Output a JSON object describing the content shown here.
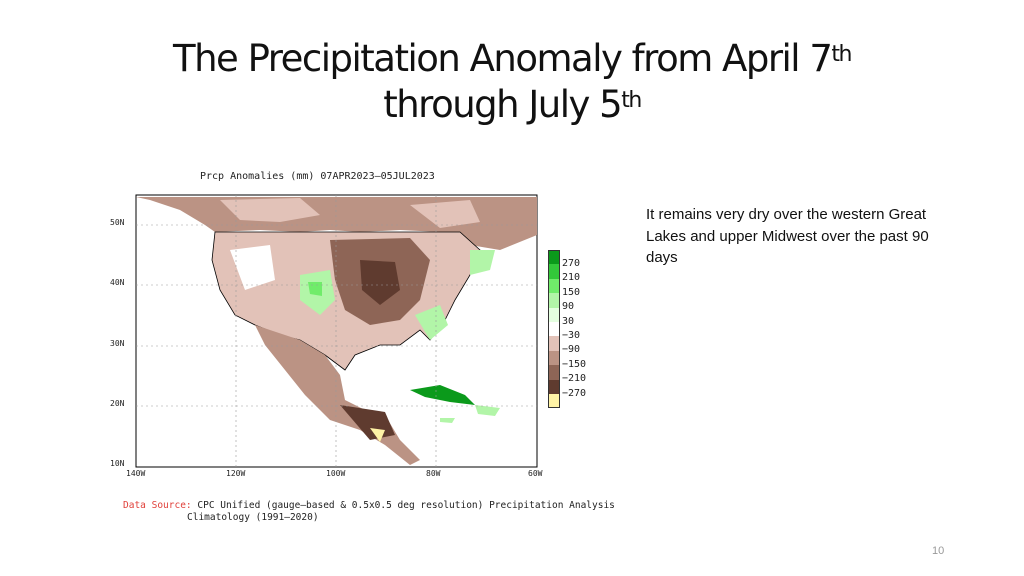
{
  "slide": {
    "title_line1": "The Precipitation Anomaly from April 7",
    "title_sup1": "th",
    "title_line2": "through  July 5",
    "title_sup2": "th",
    "page_number": "10"
  },
  "map": {
    "title": "Prcp Anomalies (mm) 07APR2023–05JUL2023",
    "lat_labels": [
      "50N",
      "40N",
      "30N",
      "20N",
      "10N"
    ],
    "lon_labels": [
      "140W",
      "120W",
      "100W",
      "80W",
      "60W"
    ],
    "legend": {
      "labels": [
        "270",
        "210",
        "150",
        "90",
        "30",
        "−30",
        "−90",
        "−150",
        "−210",
        "−270"
      ],
      "colors": [
        "#0b9a1b",
        "#33c83a",
        "#70ec6a",
        "#b2f5a8",
        "#e4ffe0",
        "#ffffff",
        "#e2c2b8",
        "#bb9384",
        "#8e6556",
        "#5f3b2f",
        "#fff3a6"
      ]
    }
  },
  "note": "It remains very dry over the western Great Lakes and upper Midwest over the past 90 days",
  "source": {
    "label": "Data Source:",
    "line1": "CPC Unified (gauge—based & 0.5x0.5 deg resolution) Precipitation Analysis",
    "line2": "Climatology (1991—2020)"
  }
}
